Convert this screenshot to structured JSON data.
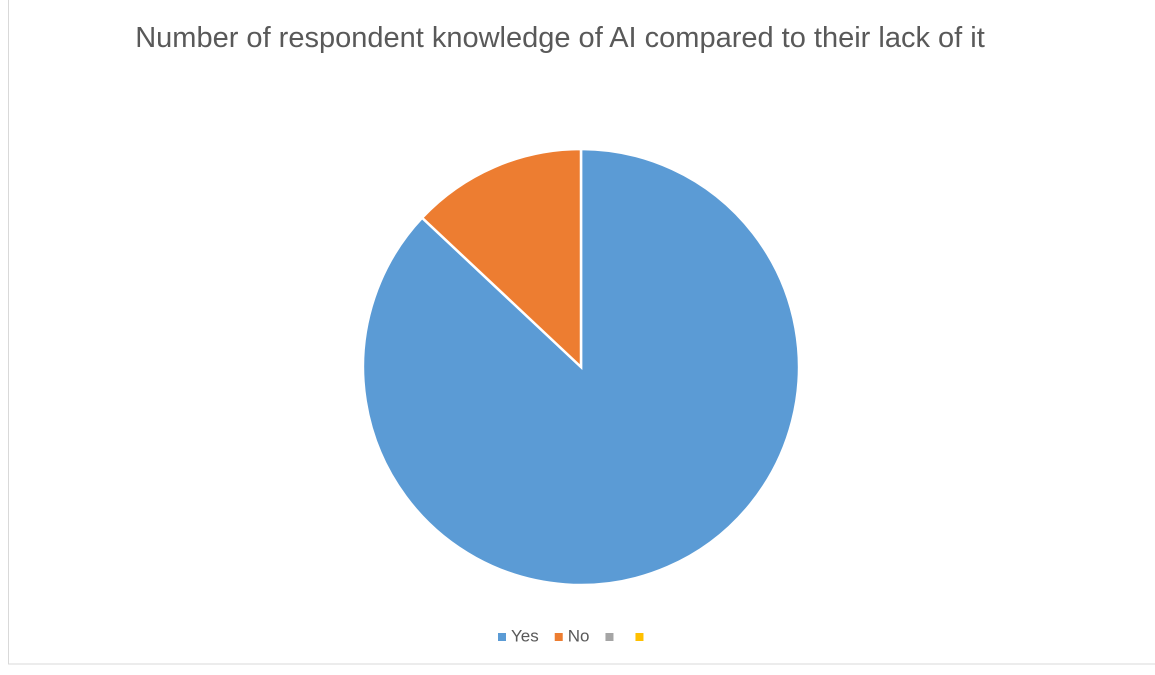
{
  "chart_data": {
    "type": "pie",
    "title": "Number of respondent knowledge of AI compared to their lack of it",
    "categories": [
      "Yes",
      "No",
      null,
      null
    ],
    "values": [
      87,
      13,
      0,
      0
    ],
    "colors": [
      "#5b9bd5",
      "#ed7d31",
      "#a5a5a5",
      "#ffc000"
    ],
    "legend": "bottom"
  }
}
